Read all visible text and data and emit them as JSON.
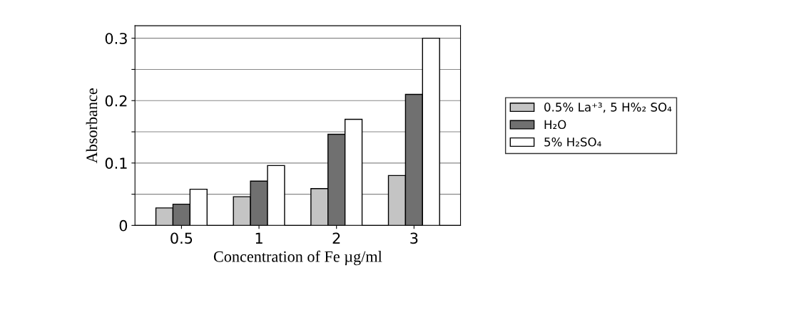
{
  "chart_data": {
    "type": "bar",
    "xlabel": "Concentration of Fe µg/ml",
    "ylabel": "Absorbance",
    "categories": [
      "0.5",
      "1",
      "2",
      "3"
    ],
    "series": [
      {
        "name": "0.5% La⁺³, 5 H%₂ SO₄",
        "color": "#c4c4c4",
        "values": [
          0.028,
          0.046,
          0.059,
          0.08
        ]
      },
      {
        "name": "H₂O",
        "color": "#707070",
        "values": [
          0.034,
          0.071,
          0.146,
          0.21
        ]
      },
      {
        "name": "5% H₂SO₄",
        "color": "#ffffff",
        "values": [
          0.058,
          0.096,
          0.17,
          0.3
        ]
      }
    ],
    "ylim": [
      0,
      0.32
    ],
    "yticks": [
      0,
      {
        "value": 0.05,
        "label": null
      },
      0.1,
      {
        "value": 0.15,
        "label": null
      },
      0.2,
      {
        "value": 0.25,
        "label": null
      },
      0.3
    ],
    "grid": "y",
    "legend": "right"
  }
}
